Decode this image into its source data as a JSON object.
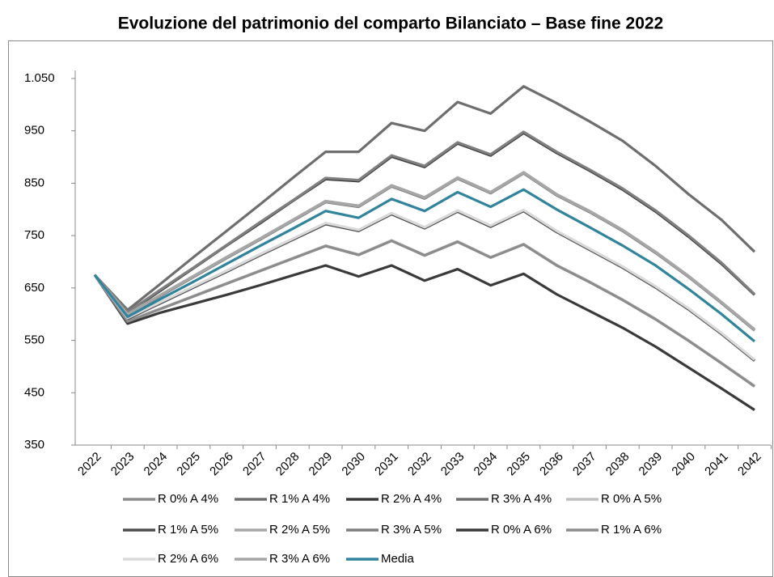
{
  "chart_data": {
    "type": "line",
    "title": "Evoluzione del patrimonio del comparto Bilanciato – Base fine 2022",
    "categories": [
      "2022",
      "2023",
      "2024",
      "2025",
      "2026",
      "2027",
      "2028",
      "2029",
      "2030",
      "2031",
      "2032",
      "2033",
      "2034",
      "2035",
      "2036",
      "2037",
      "2038",
      "2039",
      "2040",
      "2041",
      "2042"
    ],
    "ylim": [
      350,
      1050
    ],
    "yticks": [
      350,
      450,
      550,
      650,
      750,
      850,
      950,
      {
        "value": 1050,
        "label": "1.050"
      }
    ],
    "series": [
      {
        "name": "R 0% A 4%",
        "color": "#8c8c8c",
        "values": [
          675,
          592,
          622,
          652,
          682,
          713,
          743,
          773,
          760,
          792,
          765,
          797,
          768,
          798,
          758,
          724,
          690,
          652,
          610,
          563,
          512
        ]
      },
      {
        "name": "R 1% A 4%",
        "color": "#6e6e6e",
        "values": [
          675,
          599,
          635,
          671,
          707,
          742,
          778,
          814,
          805,
          844,
          821,
          859,
          831,
          869,
          827,
          795,
          759,
          717,
          671,
          621,
          569
        ]
      },
      {
        "name": "R 2% A 4%",
        "color": "#3a3a3a",
        "values": [
          675,
          603,
          645,
          688,
          731,
          773,
          816,
          858,
          854,
          901,
          881,
          926,
          903,
          946,
          908,
          874,
          838,
          796,
          748,
          696,
          637
        ]
      },
      {
        "name": "R 3% A 4%",
        "color": "#6e6e6e",
        "values": [
          675,
          608,
          658,
          709,
          759,
          809,
          860,
          910,
          910,
          965,
          950,
          1005,
          983,
          1035,
          1003,
          968,
          931,
          883,
          829,
          780,
          719
        ]
      },
      {
        "name": "R 0% A 5%",
        "color": "#bfbfbf",
        "values": [
          675,
          587,
          611,
          635,
          659,
          683,
          707,
          731,
          714,
          741,
          713,
          739,
          709,
          734,
          694,
          662,
          628,
          591,
          550,
          507,
          463
        ]
      },
      {
        "name": "R 1% A 5%",
        "color": "#4d4d4d",
        "values": [
          675,
          591,
          621,
          651,
          681,
          712,
          742,
          772,
          759,
          791,
          764,
          796,
          767,
          797,
          757,
          723,
          689,
          651,
          609,
          562,
          511
        ]
      },
      {
        "name": "R 2% A 5%",
        "color": "#a6a6a6",
        "values": [
          675,
          601,
          637,
          673,
          709,
          744,
          780,
          816,
          807,
          846,
          823,
          861,
          833,
          871,
          829,
          797,
          761,
          719,
          673,
          623,
          571
        ]
      },
      {
        "name": "R 3% A 5%",
        "color": "#7f7f7f",
        "values": [
          675,
          604,
          647,
          689,
          732,
          775,
          817,
          860,
          856,
          903,
          883,
          928,
          905,
          948,
          910,
          876,
          840,
          798,
          750,
          698,
          638
        ]
      },
      {
        "name": "R 0% A 6%",
        "color": "#3a3a3a",
        "values": [
          675,
          582,
          603,
          620,
          637,
          655,
          674,
          693,
          672,
          693,
          664,
          686,
          655,
          677,
          638,
          606,
          574,
          538,
          498,
          458,
          417
        ]
      },
      {
        "name": "R 1% A 6%",
        "color": "#8c8c8c",
        "values": [
          675,
          586,
          610,
          634,
          658,
          682,
          706,
          730,
          713,
          740,
          712,
          738,
          708,
          733,
          693,
          661,
          627,
          590,
          549,
          506,
          462
        ]
      },
      {
        "name": "R 2% A 6%",
        "color": "#d9d9d9",
        "values": [
          675,
          593,
          623,
          653,
          683,
          714,
          744,
          774,
          761,
          793,
          766,
          798,
          769,
          799,
          759,
          725,
          691,
          653,
          611,
          564,
          513
        ]
      },
      {
        "name": "R 3% A 6%",
        "color": "#a6a6a6",
        "values": [
          675,
          600,
          636,
          672,
          708,
          743,
          779,
          815,
          806,
          845,
          822,
          860,
          832,
          870,
          828,
          796,
          760,
          718,
          672,
          622,
          570
        ]
      },
      {
        "name": "Media",
        "color": "#31849b",
        "values": [
          675,
          595,
          629,
          662,
          696,
          730,
          763,
          797,
          784,
          820,
          797,
          833,
          805,
          838,
          800,
          766,
          731,
          693,
          648,
          600,
          548
        ]
      }
    ]
  }
}
